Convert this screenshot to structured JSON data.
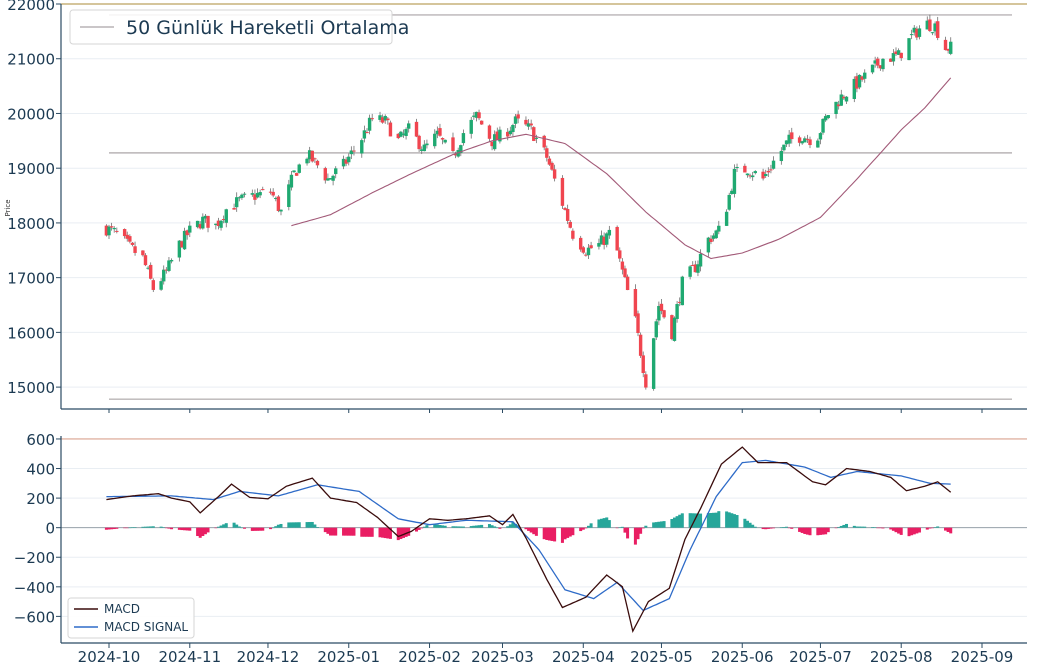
{
  "colors": {
    "up": "#1fa971",
    "down": "#f0454f",
    "wick": "#6e6e6e",
    "sma": "#a25a78",
    "hline": "#b9b4b6",
    "topline": "#c7b27a",
    "axis": "#2b4b63",
    "grid": "#e9eef3",
    "tick_text": "#1c3a52",
    "macd": "#3a0c0c",
    "signal": "#2e6bc8",
    "hist_pos": "#26a69a",
    "hist_neg": "#e91e63",
    "macd_topline": "#e0b3a3"
  },
  "chart_data": [
    {
      "id": "price",
      "type": "candlestick",
      "ylabel": "Price",
      "ylim": [
        14600,
        22000
      ],
      "yticks": [
        "15000",
        "16000",
        "17000",
        "18000",
        "19000",
        "20000",
        "21000",
        "22000"
      ],
      "legend": {
        "position": "top-left",
        "entries": [
          "50 Günlük Hareketli Ortalama"
        ]
      },
      "hlines": [
        22000,
        21800,
        19280,
        14780
      ],
      "x_start": "2024-09-30",
      "x_end": "2025-08-20",
      "anchors": [
        [
          "2024-09-30",
          17900
        ],
        [
          "2024-10-04",
          17800
        ],
        [
          "2024-10-09",
          17550
        ],
        [
          "2024-10-14",
          17350
        ],
        [
          "2024-10-18",
          16800
        ],
        [
          "2024-10-23",
          17100
        ],
        [
          "2024-10-28",
          17600
        ],
        [
          "2024-11-01",
          17850
        ],
        [
          "2024-11-06",
          18050
        ],
        [
          "2024-11-11",
          17950
        ],
        [
          "2024-11-15",
          18250
        ],
        [
          "2024-11-20",
          18400
        ],
        [
          "2024-11-26",
          18500
        ],
        [
          "2024-12-02",
          18580
        ],
        [
          "2024-12-06",
          18200
        ],
        [
          "2024-12-11",
          18900
        ],
        [
          "2024-12-16",
          19250
        ],
        [
          "2024-12-20",
          19050
        ],
        [
          "2024-12-24",
          18800
        ],
        [
          "2024-12-30",
          19050
        ],
        [
          "2025-01-06",
          19550
        ],
        [
          "2025-01-10",
          19900
        ],
        [
          "2025-01-15",
          19850
        ],
        [
          "2025-01-20",
          19500
        ],
        [
          "2025-01-24",
          19700
        ],
        [
          "2025-01-30",
          19350
        ],
        [
          "2025-02-04",
          19600
        ],
        [
          "2025-02-10",
          19200
        ],
        [
          "2025-02-14",
          19650
        ],
        [
          "2025-02-19",
          19950
        ],
        [
          "2025-02-25",
          19500
        ],
        [
          "2025-03-01",
          19600
        ],
        [
          "2025-03-06",
          19850
        ],
        [
          "2025-03-12",
          19700
        ],
        [
          "2025-03-18",
          19200
        ],
        [
          "2025-03-23",
          18500
        ],
        [
          "2025-03-28",
          17800
        ],
        [
          "2025-04-02",
          17500
        ],
        [
          "2025-04-07",
          17600
        ],
        [
          "2025-04-12",
          17850
        ],
        [
          "2025-04-16",
          17100
        ],
        [
          "2025-04-21",
          16200
        ],
        [
          "2025-04-25",
          15100
        ],
        [
          "2025-04-30",
          16500
        ],
        [
          "2025-05-05",
          16000
        ],
        [
          "2025-05-09",
          16900
        ],
        [
          "2025-05-14",
          17200
        ],
        [
          "2025-05-19",
          17700
        ],
        [
          "2025-05-24",
          17900
        ],
        [
          "2025-05-29",
          18900
        ],
        [
          "2025-06-03",
          19000
        ],
        [
          "2025-06-09",
          18800
        ],
        [
          "2025-06-14",
          19200
        ],
        [
          "2025-06-19",
          19500
        ],
        [
          "2025-06-24",
          19600
        ],
        [
          "2025-06-29",
          19500
        ],
        [
          "2025-07-04",
          20000
        ],
        [
          "2025-07-09",
          20300
        ],
        [
          "2025-07-15",
          20550
        ],
        [
          "2025-07-20",
          20750
        ],
        [
          "2025-07-25",
          21000
        ],
        [
          "2025-07-31",
          21050
        ],
        [
          "2025-08-05",
          21400
        ],
        [
          "2025-08-10",
          21650
        ],
        [
          "2025-08-14",
          21600
        ],
        [
          "2025-08-18",
          21200
        ]
      ],
      "sma_anchors": [
        [
          "2024-12-10",
          17950
        ],
        [
          "2024-12-25",
          18150
        ],
        [
          "2025-01-10",
          18550
        ],
        [
          "2025-01-25",
          18900
        ],
        [
          "2025-02-10",
          19250
        ],
        [
          "2025-02-25",
          19500
        ],
        [
          "2025-03-10",
          19620
        ],
        [
          "2025-03-25",
          19450
        ],
        [
          "2025-04-10",
          18900
        ],
        [
          "2025-04-25",
          18200
        ],
        [
          "2025-05-10",
          17600
        ],
        [
          "2025-05-20",
          17350
        ],
        [
          "2025-06-01",
          17450
        ],
        [
          "2025-06-15",
          17700
        ],
        [
          "2025-07-01",
          18100
        ],
        [
          "2025-07-15",
          18800
        ],
        [
          "2025-08-01",
          19700
        ],
        [
          "2025-08-10",
          20100
        ],
        [
          "2025-08-20",
          20650
        ]
      ]
    },
    {
      "id": "macd",
      "type": "line+bar",
      "ylim": [
        -780,
        620
      ],
      "yticks": [
        "−600",
        "−400",
        "−200",
        "0",
        "200",
        "400",
        "600"
      ],
      "hlines": [
        600
      ],
      "legend": {
        "position": "bottom-left",
        "entries": [
          "MACD",
          "MACD SIGNAL"
        ]
      },
      "x_ticks": [
        "2024-10",
        "2024-11",
        "2024-12",
        "2025-01",
        "2025-02",
        "2025-03",
        "2025-04",
        "2025-05",
        "2025-06",
        "2025-07",
        "2025-08",
        "2025-09"
      ],
      "macd_anchors": [
        [
          "2024-09-30",
          190
        ],
        [
          "2024-10-10",
          215
        ],
        [
          "2024-10-20",
          230
        ],
        [
          "2024-10-25",
          200
        ],
        [
          "2024-11-01",
          175
        ],
        [
          "2024-11-05",
          100
        ],
        [
          "2024-11-12",
          210
        ],
        [
          "2024-11-17",
          295
        ],
        [
          "2024-11-24",
          205
        ],
        [
          "2024-12-01",
          195
        ],
        [
          "2024-12-08",
          280
        ],
        [
          "2024-12-18",
          335
        ],
        [
          "2024-12-25",
          200
        ],
        [
          "2025-01-04",
          170
        ],
        [
          "2025-01-12",
          70
        ],
        [
          "2025-01-20",
          -60
        ],
        [
          "2025-01-25",
          -25
        ],
        [
          "2025-02-01",
          60
        ],
        [
          "2025-02-08",
          50
        ],
        [
          "2025-02-15",
          60
        ],
        [
          "2025-02-24",
          80
        ],
        [
          "2025-03-01",
          20
        ],
        [
          "2025-03-05",
          90
        ],
        [
          "2025-03-10",
          -70
        ],
        [
          "2025-03-18",
          -350
        ],
        [
          "2025-03-24",
          -540
        ],
        [
          "2025-04-02",
          -470
        ],
        [
          "2025-04-10",
          -320
        ],
        [
          "2025-04-16",
          -400
        ],
        [
          "2025-04-20",
          -700
        ],
        [
          "2025-04-26",
          -500
        ],
        [
          "2025-05-04",
          -410
        ],
        [
          "2025-05-10",
          -80
        ],
        [
          "2025-05-16",
          130
        ],
        [
          "2025-05-24",
          430
        ],
        [
          "2025-06-01",
          545
        ],
        [
          "2025-06-07",
          440
        ],
        [
          "2025-06-18",
          440
        ],
        [
          "2025-06-28",
          310
        ],
        [
          "2025-07-03",
          290
        ],
        [
          "2025-07-11",
          400
        ],
        [
          "2025-07-20",
          380
        ],
        [
          "2025-07-28",
          340
        ],
        [
          "2025-08-03",
          250
        ],
        [
          "2025-08-10",
          280
        ],
        [
          "2025-08-15",
          310
        ],
        [
          "2025-08-20",
          240
        ]
      ],
      "signal_anchors": [
        [
          "2024-09-30",
          210
        ],
        [
          "2024-10-25",
          215
        ],
        [
          "2024-11-10",
          190
        ],
        [
          "2024-11-20",
          245
        ],
        [
          "2024-12-05",
          215
        ],
        [
          "2024-12-20",
          290
        ],
        [
          "2025-01-05",
          245
        ],
        [
          "2025-01-20",
          60
        ],
        [
          "2025-02-01",
          20
        ],
        [
          "2025-02-15",
          50
        ],
        [
          "2025-03-05",
          40
        ],
        [
          "2025-03-15",
          -150
        ],
        [
          "2025-03-25",
          -420
        ],
        [
          "2025-04-05",
          -480
        ],
        [
          "2025-04-14",
          -370
        ],
        [
          "2025-04-24",
          -560
        ],
        [
          "2025-05-04",
          -480
        ],
        [
          "2025-05-12",
          -150
        ],
        [
          "2025-05-22",
          210
        ],
        [
          "2025-06-01",
          440
        ],
        [
          "2025-06-10",
          455
        ],
        [
          "2025-06-25",
          410
        ],
        [
          "2025-07-05",
          340
        ],
        [
          "2025-07-15",
          380
        ],
        [
          "2025-08-01",
          350
        ],
        [
          "2025-08-12",
          300
        ],
        [
          "2025-08-20",
          295
        ]
      ]
    }
  ]
}
